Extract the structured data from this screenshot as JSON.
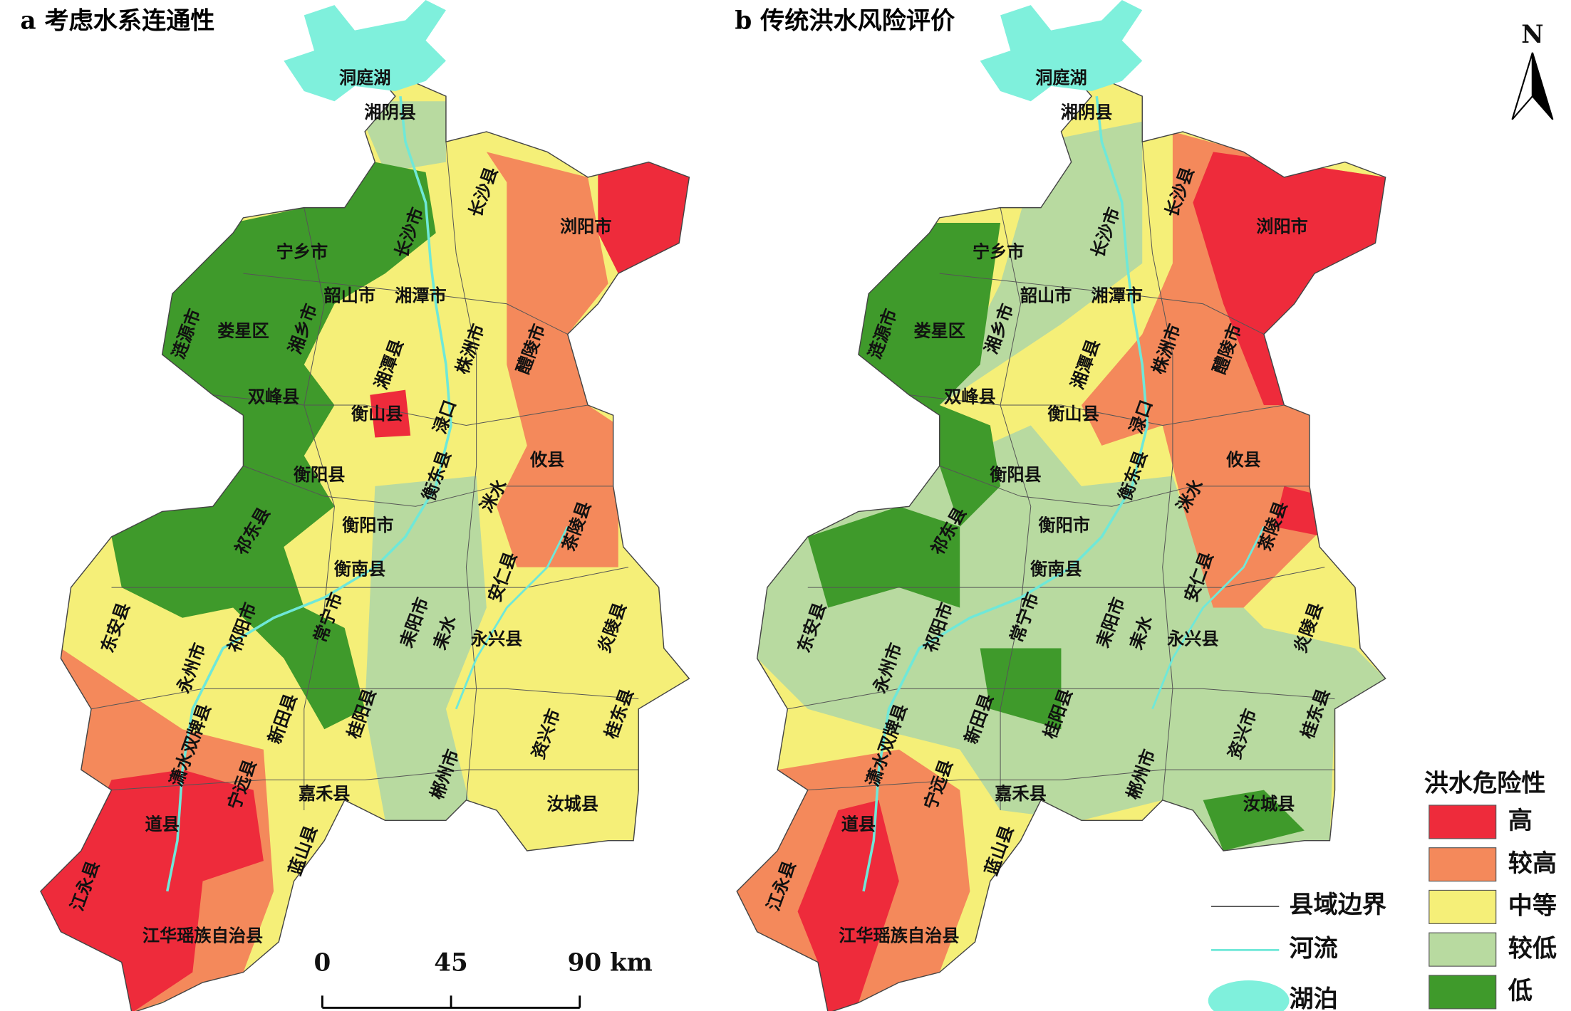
{
  "panels": [
    {
      "title": "a 考虑水系连通性"
    },
    {
      "title": "b 传统洪水风险评价"
    }
  ],
  "places": [
    "洞庭湖",
    "湘阴县",
    "长沙县",
    "浏阳市",
    "宁乡市",
    "长沙市",
    "韶山市",
    "湘潭市",
    "涟源市",
    "娄星区",
    "湘乡市",
    "湘潭县",
    "株洲市",
    "醴陵市",
    "双峰县",
    "衡山县",
    "渌口",
    "衡东县",
    "攸县",
    "衡阳县",
    "洣水",
    "茶陵县",
    "衡阳市",
    "祁东县",
    "衡南县",
    "安仁县",
    "东安县",
    "祁阳市",
    "常宁市",
    "耒阳市",
    "耒水",
    "永兴县",
    "炎陵县",
    "永州市",
    "双牌县",
    "新田县",
    "桂阳县",
    "潇水",
    "宁远县",
    "嘉禾县",
    "郴州市",
    "资兴市",
    "桂东县",
    "汝城县",
    "道县",
    "蓝山县",
    "江永县",
    "江华瑶族自治县"
  ],
  "north": "N",
  "scale_bar": {
    "labels": [
      "0",
      "45",
      "90 km"
    ]
  },
  "legend": {
    "title": "洪水危险性",
    "classes": [
      {
        "label": "高",
        "color": "#ee2b3b"
      },
      {
        "label": "较高",
        "color": "#f4895b"
      },
      {
        "label": "中等",
        "color": "#f5ef78"
      },
      {
        "label": "较低",
        "color": "#b8daa0"
      },
      {
        "label": "低",
        "color": "#3f9a2b"
      }
    ],
    "symbols": [
      {
        "label": "县域边界"
      },
      {
        "label": "河流"
      },
      {
        "label": "湖泊"
      }
    ]
  }
}
